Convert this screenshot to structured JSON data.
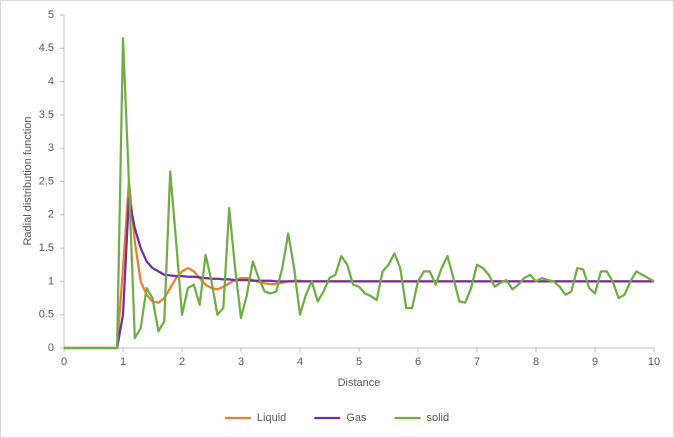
{
  "chart_data": {
    "type": "line",
    "xlabel": "Distance",
    "ylabel": "Radial distribution function",
    "x": [
      0,
      0.9,
      1,
      1.1,
      1.2,
      1.3,
      1.4,
      1.5,
      1.6,
      1.7,
      1.8,
      1.9,
      2,
      2.1,
      2.2,
      2.3,
      2.4,
      2.5,
      2.6,
      2.7,
      2.8,
      2.9,
      3,
      3.1,
      3.2,
      3.3,
      3.4,
      3.5,
      3.6,
      3.7,
      3.8,
      3.9,
      4,
      4.1,
      4.2,
      4.3,
      4.4,
      4.5,
      4.6,
      4.7,
      4.8,
      4.9,
      5,
      5.1,
      5.2,
      5.3,
      5.4,
      5.5,
      5.6,
      5.7,
      5.8,
      5.9,
      6,
      6.1,
      6.2,
      6.3,
      6.4,
      6.5,
      6.6,
      6.7,
      6.8,
      6.9,
      7,
      7.1,
      7.2,
      7.3,
      7.4,
      7.5,
      7.6,
      7.7,
      7.8,
      7.9,
      8,
      8.1,
      8.2,
      8.3,
      8.4,
      8.5,
      8.6,
      8.7,
      8.8,
      8.9,
      9,
      9.1,
      9.2,
      9.3,
      9.4,
      9.5,
      9.6,
      9.7,
      9.8,
      9.9,
      10
    ],
    "series": [
      {
        "name": "Liquid",
        "color": "#ed7d31",
        "values": [
          0,
          0,
          1.2,
          2.5,
          1.6,
          1.0,
          0.8,
          0.7,
          0.68,
          0.75,
          0.9,
          1.05,
          1.15,
          1.2,
          1.15,
          1.05,
          0.95,
          0.9,
          0.88,
          0.92,
          0.97,
          1.02,
          1.05,
          1.05,
          1.02,
          0.99,
          0.97,
          0.96,
          0.96,
          0.98,
          1.0,
          1.01,
          1.01,
          1,
          1,
          1,
          1,
          1,
          1,
          1,
          1,
          1,
          1,
          1,
          1,
          1,
          1,
          1,
          1,
          1,
          1,
          1,
          1,
          1,
          1,
          1,
          1,
          1,
          1,
          1,
          1,
          1,
          1,
          1,
          1,
          1,
          1,
          1,
          1,
          1,
          1,
          1,
          1,
          1,
          1,
          1,
          1,
          1,
          1,
          1,
          1,
          1,
          1,
          1,
          1,
          1,
          1,
          1,
          1,
          1,
          1,
          1,
          1
        ]
      },
      {
        "name": "Gas",
        "color": "#7030a0",
        "values": [
          0,
          0,
          0.5,
          2.25,
          1.8,
          1.5,
          1.3,
          1.2,
          1.15,
          1.1,
          1.09,
          1.08,
          1.08,
          1.07,
          1.07,
          1.06,
          1.05,
          1.04,
          1.04,
          1.03,
          1.03,
          1.02,
          1.02,
          1.02,
          1.01,
          1.01,
          1.01,
          1.01,
          1.0,
          1.0,
          1.0,
          1.0,
          1,
          1,
          1,
          1,
          1,
          1,
          1,
          1,
          1,
          1,
          1,
          1,
          1,
          1,
          1,
          1,
          1,
          1,
          1,
          1,
          1,
          1,
          1,
          1,
          1,
          1,
          1,
          1,
          1,
          1,
          1,
          1,
          1,
          1,
          1,
          1,
          1,
          1,
          1,
          1,
          1,
          1,
          1,
          1,
          1,
          1,
          1,
          1,
          1,
          1,
          1,
          1,
          1,
          1,
          1,
          1,
          1,
          1,
          1,
          1,
          1
        ]
      },
      {
        "name": "solid",
        "color": "#70ad47",
        "values": [
          0,
          0,
          4.65,
          2.5,
          0.15,
          0.3,
          0.9,
          0.75,
          0.25,
          0.4,
          2.65,
          1.6,
          0.5,
          0.9,
          0.95,
          0.65,
          1.4,
          1.0,
          0.5,
          0.6,
          2.1,
          1.2,
          0.45,
          0.8,
          1.3,
          1.05,
          0.85,
          0.82,
          0.85,
          1.2,
          1.72,
          1.2,
          0.5,
          0.8,
          1.0,
          0.7,
          0.85,
          1.05,
          1.1,
          1.38,
          1.25,
          0.95,
          0.92,
          0.82,
          0.78,
          0.72,
          1.15,
          1.25,
          1.42,
          1.2,
          0.6,
          0.6,
          1.0,
          1.15,
          1.15,
          0.95,
          1.2,
          1.38,
          1.05,
          0.7,
          0.68,
          0.9,
          1.25,
          1.2,
          1.1,
          0.92,
          0.98,
          1.02,
          0.88,
          0.95,
          1.05,
          1.1,
          1.0,
          1.05,
          1.02,
          1.0,
          0.92,
          0.8,
          0.85,
          1.2,
          1.18,
          0.9,
          0.82,
          1.15,
          1.15,
          1.0,
          0.75,
          0.8,
          1.0,
          1.15,
          1.1,
          1.05,
          1.0
        ]
      }
    ],
    "xlim": [
      0,
      10
    ],
    "xticks": [
      0,
      1,
      2,
      3,
      4,
      5,
      6,
      7,
      8,
      9,
      10
    ],
    "ylim": [
      0,
      5
    ],
    "yticks": [
      0,
      0.5,
      1,
      1.5,
      2,
      2.5,
      3,
      3.5,
      4,
      4.5,
      5
    ],
    "grid": false,
    "legend": "bottom"
  }
}
